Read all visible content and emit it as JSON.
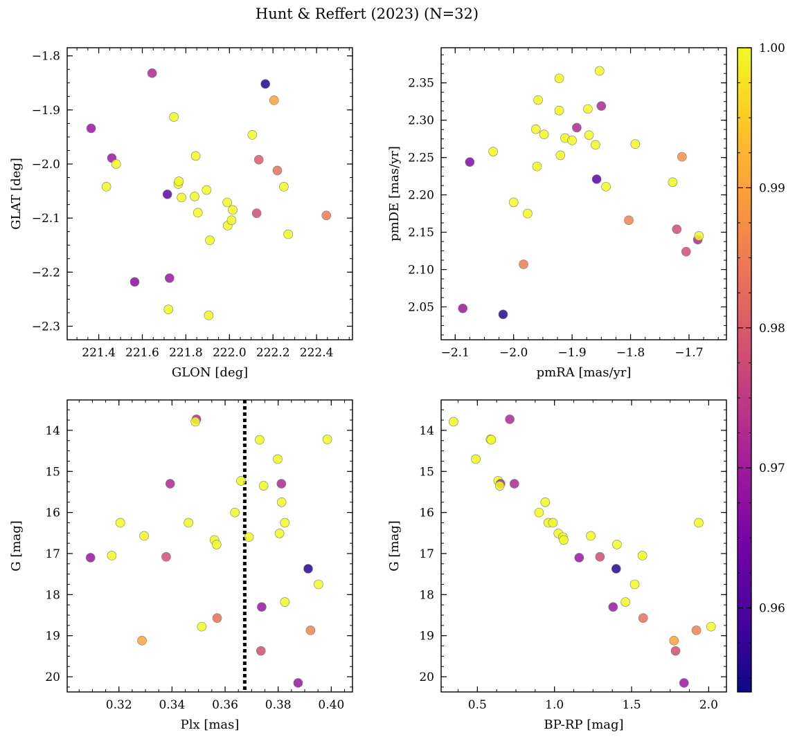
{
  "title": "Hunt & Reffert (2023) (N=32)",
  "chart_data": [
    {
      "type": "scatter",
      "name": "glon-glat",
      "xlabel": "GLON [deg]",
      "ylabel": "GLAT [deg]",
      "xlim": [
        221.255,
        222.565
      ],
      "ylim": [
        -2.325,
        -1.785
      ],
      "xticks": [
        221.4,
        221.6,
        221.8,
        222.0,
        222.2,
        222.4
      ],
      "xtick_labels": [
        "221.4",
        "221.6",
        "221.8",
        "222.0",
        "222.2",
        "222.4"
      ],
      "yticks": [
        -2.3,
        -2.2,
        -2.1,
        -2.0,
        -1.9,
        -1.8
      ],
      "ytick_labels": [
        "−2.3",
        "−2.2",
        "−2.1",
        "−2.0",
        "−1.9",
        "−1.8"
      ],
      "points": [
        {
          "x": 221.365,
          "y": -1.934,
          "c": 0.969
        },
        {
          "x": 221.435,
          "y": -2.042,
          "c": 1.0
        },
        {
          "x": 221.46,
          "y": -1.989,
          "c": 0.969
        },
        {
          "x": 221.48,
          "y": -2.0,
          "c": 1.0
        },
        {
          "x": 221.565,
          "y": -2.218,
          "c": 0.967
        },
        {
          "x": 221.645,
          "y": -1.832,
          "c": 0.972
        },
        {
          "x": 221.715,
          "y": -2.056,
          "c": 0.962
        },
        {
          "x": 221.72,
          "y": -2.269,
          "c": 1.0
        },
        {
          "x": 221.725,
          "y": -2.211,
          "c": 0.969
        },
        {
          "x": 221.745,
          "y": -1.913,
          "c": 1.0
        },
        {
          "x": 221.765,
          "y": -2.037,
          "c": 1.0
        },
        {
          "x": 221.768,
          "y": -2.032,
          "c": 1.0
        },
        {
          "x": 221.78,
          "y": -2.062,
          "c": 1.0
        },
        {
          "x": 221.84,
          "y": -2.06,
          "c": 1.0
        },
        {
          "x": 221.845,
          "y": -1.985,
          "c": 1.0
        },
        {
          "x": 221.855,
          "y": -2.09,
          "c": 1.0
        },
        {
          "x": 221.895,
          "y": -2.048,
          "c": 1.0
        },
        {
          "x": 221.905,
          "y": -2.28,
          "c": 1.0
        },
        {
          "x": 221.91,
          "y": -2.141,
          "c": 1.0
        },
        {
          "x": 221.99,
          "y": -2.071,
          "c": 1.0
        },
        {
          "x": 221.992,
          "y": -2.114,
          "c": 1.0
        },
        {
          "x": 222.01,
          "y": -2.104,
          "c": 1.0
        },
        {
          "x": 222.015,
          "y": -2.085,
          "c": 1.0
        },
        {
          "x": 222.105,
          "y": -1.946,
          "c": 1.0
        },
        {
          "x": 222.125,
          "y": -2.091,
          "c": 0.978
        },
        {
          "x": 222.135,
          "y": -1.992,
          "c": 0.98
        },
        {
          "x": 222.165,
          "y": -1.852,
          "c": 0.956
        },
        {
          "x": 222.205,
          "y": -1.882,
          "c": 0.99
        },
        {
          "x": 222.22,
          "y": -2.012,
          "c": 0.983
        },
        {
          "x": 222.25,
          "y": -2.042,
          "c": 1.0
        },
        {
          "x": 222.27,
          "y": -2.13,
          "c": 1.0
        },
        {
          "x": 222.445,
          "y": -2.095,
          "c": 0.985
        }
      ]
    },
    {
      "type": "scatter",
      "name": "pmra-pmde",
      "xlabel": "pmRA [mas/yr]",
      "ylabel": "pmDE [mas/yr]",
      "xlim": [
        -2.124,
        -1.636
      ],
      "ylim": [
        2.006,
        2.397
      ],
      "xticks": [
        -2.1,
        -2.0,
        -1.9,
        -1.8,
        -1.7
      ],
      "xtick_labels": [
        "−2.1",
        "−2.0",
        "−1.9",
        "−1.8",
        "−1.7"
      ],
      "yticks": [
        2.05,
        2.1,
        2.15,
        2.2,
        2.25,
        2.3,
        2.35
      ],
      "ytick_labels": [
        "2.05",
        "2.10",
        "2.15",
        "2.20",
        "2.25",
        "2.30",
        "2.35"
      ],
      "points": [
        {
          "x": -2.087,
          "y": 2.048,
          "c": 0.969
        },
        {
          "x": -2.075,
          "y": 2.244,
          "c": 0.966
        },
        {
          "x": -2.035,
          "y": 2.258,
          "c": 1.0
        },
        {
          "x": -2.018,
          "y": 2.04,
          "c": 0.956
        },
        {
          "x": -2.0,
          "y": 2.19,
          "c": 1.0
        },
        {
          "x": -1.983,
          "y": 2.107,
          "c": 0.985
        },
        {
          "x": -1.976,
          "y": 2.175,
          "c": 1.0
        },
        {
          "x": -1.962,
          "y": 2.288,
          "c": 1.0
        },
        {
          "x": -1.96,
          "y": 2.238,
          "c": 1.0
        },
        {
          "x": -1.958,
          "y": 2.327,
          "c": 1.0
        },
        {
          "x": -1.948,
          "y": 2.281,
          "c": 1.0
        },
        {
          "x": -1.922,
          "y": 2.356,
          "c": 1.0
        },
        {
          "x": -1.922,
          "y": 2.313,
          "c": 1.0
        },
        {
          "x": -1.92,
          "y": 2.253,
          "c": 1.0
        },
        {
          "x": -1.912,
          "y": 2.276,
          "c": 1.0
        },
        {
          "x": -1.9,
          "y": 2.273,
          "c": 1.0
        },
        {
          "x": -1.892,
          "y": 2.29,
          "c": 0.972
        },
        {
          "x": -1.873,
          "y": 2.315,
          "c": 1.0
        },
        {
          "x": -1.871,
          "y": 2.28,
          "c": 1.0
        },
        {
          "x": -1.86,
          "y": 2.267,
          "c": 1.0
        },
        {
          "x": -1.858,
          "y": 2.221,
          "c": 0.962
        },
        {
          "x": -1.853,
          "y": 2.366,
          "c": 1.0
        },
        {
          "x": -1.85,
          "y": 2.319,
          "c": 0.972
        },
        {
          "x": -1.842,
          "y": 2.211,
          "c": 1.0
        },
        {
          "x": -1.803,
          "y": 2.166,
          "c": 0.986
        },
        {
          "x": -1.792,
          "y": 2.268,
          "c": 1.0
        },
        {
          "x": -1.728,
          "y": 2.217,
          "c": 1.0
        },
        {
          "x": -1.721,
          "y": 2.154,
          "c": 0.978
        },
        {
          "x": -1.712,
          "y": 2.251,
          "c": 0.988
        },
        {
          "x": -1.705,
          "y": 2.124,
          "c": 0.978
        },
        {
          "x": -1.685,
          "y": 2.14,
          "c": 0.972
        },
        {
          "x": -1.683,
          "y": 2.145,
          "c": 1.0
        }
      ]
    },
    {
      "type": "scatter",
      "name": "plx-g",
      "xlabel": "Plx [mas]",
      "ylabel": "G [mag]",
      "xlim": [
        0.3005,
        0.408
      ],
      "ylim": [
        20.37,
        13.26
      ],
      "y_inverted": true,
      "vline": 0.3674,
      "xticks": [
        0.32,
        0.34,
        0.36,
        0.38,
        0.4
      ],
      "xtick_labels": [
        "0.32",
        "0.34",
        "0.36",
        "0.38",
        "0.40"
      ],
      "yticks": [
        14,
        15,
        16,
        17,
        18,
        19,
        20
      ],
      "ytick_labels": [
        "14",
        "15",
        "16",
        "17",
        "18",
        "19",
        "20"
      ],
      "points": [
        {
          "x": 0.3093,
          "y": 17.1,
          "c": 0.969
        },
        {
          "x": 0.3173,
          "y": 17.05,
          "c": 1.0
        },
        {
          "x": 0.3205,
          "y": 16.25,
          "c": 1.0
        },
        {
          "x": 0.3287,
          "y": 19.12,
          "c": 0.99
        },
        {
          "x": 0.3295,
          "y": 16.57,
          "c": 1.0
        },
        {
          "x": 0.3378,
          "y": 17.08,
          "c": 0.978
        },
        {
          "x": 0.3393,
          "y": 15.3,
          "c": 0.972
        },
        {
          "x": 0.3462,
          "y": 16.25,
          "c": 1.0
        },
        {
          "x": 0.3492,
          "y": 13.73,
          "c": 0.972
        },
        {
          "x": 0.3488,
          "y": 13.79,
          "c": 1.0
        },
        {
          "x": 0.3512,
          "y": 18.78,
          "c": 1.0
        },
        {
          "x": 0.356,
          "y": 16.67,
          "c": 1.0
        },
        {
          "x": 0.3568,
          "y": 16.78,
          "c": 1.0
        },
        {
          "x": 0.357,
          "y": 18.57,
          "c": 0.983
        },
        {
          "x": 0.3637,
          "y": 16.0,
          "c": 1.0
        },
        {
          "x": 0.366,
          "y": 15.23,
          "c": 1.0
        },
        {
          "x": 0.369,
          "y": 16.6,
          "c": 1.0
        },
        {
          "x": 0.373,
          "y": 14.23,
          "c": 1.0
        },
        {
          "x": 0.3735,
          "y": 19.37,
          "c": 0.978
        },
        {
          "x": 0.3738,
          "y": 18.3,
          "c": 0.969
        },
        {
          "x": 0.3745,
          "y": 15.35,
          "c": 1.0
        },
        {
          "x": 0.3798,
          "y": 14.7,
          "c": 1.0
        },
        {
          "x": 0.3805,
          "y": 16.51,
          "c": 1.0
        },
        {
          "x": 0.3812,
          "y": 15.3,
          "c": 0.972
        },
        {
          "x": 0.3813,
          "y": 15.75,
          "c": 1.0
        },
        {
          "x": 0.3825,
          "y": 16.25,
          "c": 1.0
        },
        {
          "x": 0.3825,
          "y": 18.18,
          "c": 1.0
        },
        {
          "x": 0.3875,
          "y": 20.15,
          "c": 0.969
        },
        {
          "x": 0.3913,
          "y": 17.37,
          "c": 0.956
        },
        {
          "x": 0.3922,
          "y": 18.87,
          "c": 0.986
        },
        {
          "x": 0.3952,
          "y": 17.75,
          "c": 1.0
        },
        {
          "x": 0.3985,
          "y": 14.22,
          "c": 1.0
        }
      ]
    },
    {
      "type": "scatter",
      "name": "bprp-g",
      "xlabel": "BP-RP [mag]",
      "ylabel": "G [mag]",
      "xlim": [
        0.265,
        2.115
      ],
      "ylim": [
        20.37,
        13.26
      ],
      "y_inverted": true,
      "xticks": [
        0.5,
        1.0,
        1.5,
        2.0
      ],
      "xtick_labels": [
        "0.5",
        "1.0",
        "1.5",
        "2.0"
      ],
      "yticks": [
        14,
        15,
        16,
        17,
        18,
        19,
        20
      ],
      "ytick_labels": [
        "14",
        "15",
        "16",
        "17",
        "18",
        "19",
        "20"
      ],
      "points": [
        {
          "x": 0.345,
          "y": 13.79,
          "c": 1.0
        },
        {
          "x": 0.49,
          "y": 14.7,
          "c": 1.0
        },
        {
          "x": 0.585,
          "y": 14.22,
          "c": 1.0
        },
        {
          "x": 0.59,
          "y": 14.23,
          "c": 1.0
        },
        {
          "x": 0.635,
          "y": 15.23,
          "c": 1.0
        },
        {
          "x": 0.65,
          "y": 15.3,
          "c": 0.972
        },
        {
          "x": 0.645,
          "y": 15.35,
          "c": 1.0
        },
        {
          "x": 0.71,
          "y": 13.73,
          "c": 0.972
        },
        {
          "x": 0.74,
          "y": 15.3,
          "c": 0.972
        },
        {
          "x": 0.9,
          "y": 16.0,
          "c": 1.0
        },
        {
          "x": 0.94,
          "y": 15.75,
          "c": 1.0
        },
        {
          "x": 0.96,
          "y": 16.25,
          "c": 1.0
        },
        {
          "x": 0.99,
          "y": 16.25,
          "c": 1.0
        },
        {
          "x": 1.025,
          "y": 16.51,
          "c": 1.0
        },
        {
          "x": 1.055,
          "y": 16.6,
          "c": 1.0
        },
        {
          "x": 1.06,
          "y": 16.67,
          "c": 1.0
        },
        {
          "x": 1.16,
          "y": 17.1,
          "c": 0.969
        },
        {
          "x": 1.235,
          "y": 16.57,
          "c": 1.0
        },
        {
          "x": 1.295,
          "y": 17.08,
          "c": 0.978
        },
        {
          "x": 1.38,
          "y": 18.3,
          "c": 0.969
        },
        {
          "x": 1.4,
          "y": 17.37,
          "c": 0.956
        },
        {
          "x": 1.405,
          "y": 16.78,
          "c": 1.0
        },
        {
          "x": 1.46,
          "y": 18.18,
          "c": 1.0
        },
        {
          "x": 1.52,
          "y": 17.75,
          "c": 1.0
        },
        {
          "x": 1.57,
          "y": 17.05,
          "c": 1.0
        },
        {
          "x": 1.575,
          "y": 18.57,
          "c": 0.983
        },
        {
          "x": 1.775,
          "y": 19.12,
          "c": 0.99
        },
        {
          "x": 1.785,
          "y": 19.37,
          "c": 0.978
        },
        {
          "x": 1.84,
          "y": 20.15,
          "c": 0.969
        },
        {
          "x": 1.92,
          "y": 18.87,
          "c": 0.986
        },
        {
          "x": 1.935,
          "y": 16.25,
          "c": 1.0
        },
        {
          "x": 2.015,
          "y": 18.78,
          "c": 1.0
        }
      ]
    }
  ],
  "colorbar": {
    "min": 0.954,
    "max": 1.0,
    "ticks": [
      0.96,
      0.97,
      0.98,
      0.99,
      1.0
    ],
    "tick_labels": [
      "0.96",
      "0.97",
      "0.98",
      "0.99",
      "1.00"
    ],
    "colormap": "plasma"
  },
  "colors": {
    "plasma_stops": [
      "#0d0887",
      "#46039f",
      "#7201a8",
      "#9c179e",
      "#bd3786",
      "#d8576b",
      "#ed7953",
      "#fb9f3a",
      "#fdca26",
      "#f0f921"
    ],
    "marker_edge": "#7a7a7a",
    "axis": "#000000",
    "vline": "#000000"
  }
}
